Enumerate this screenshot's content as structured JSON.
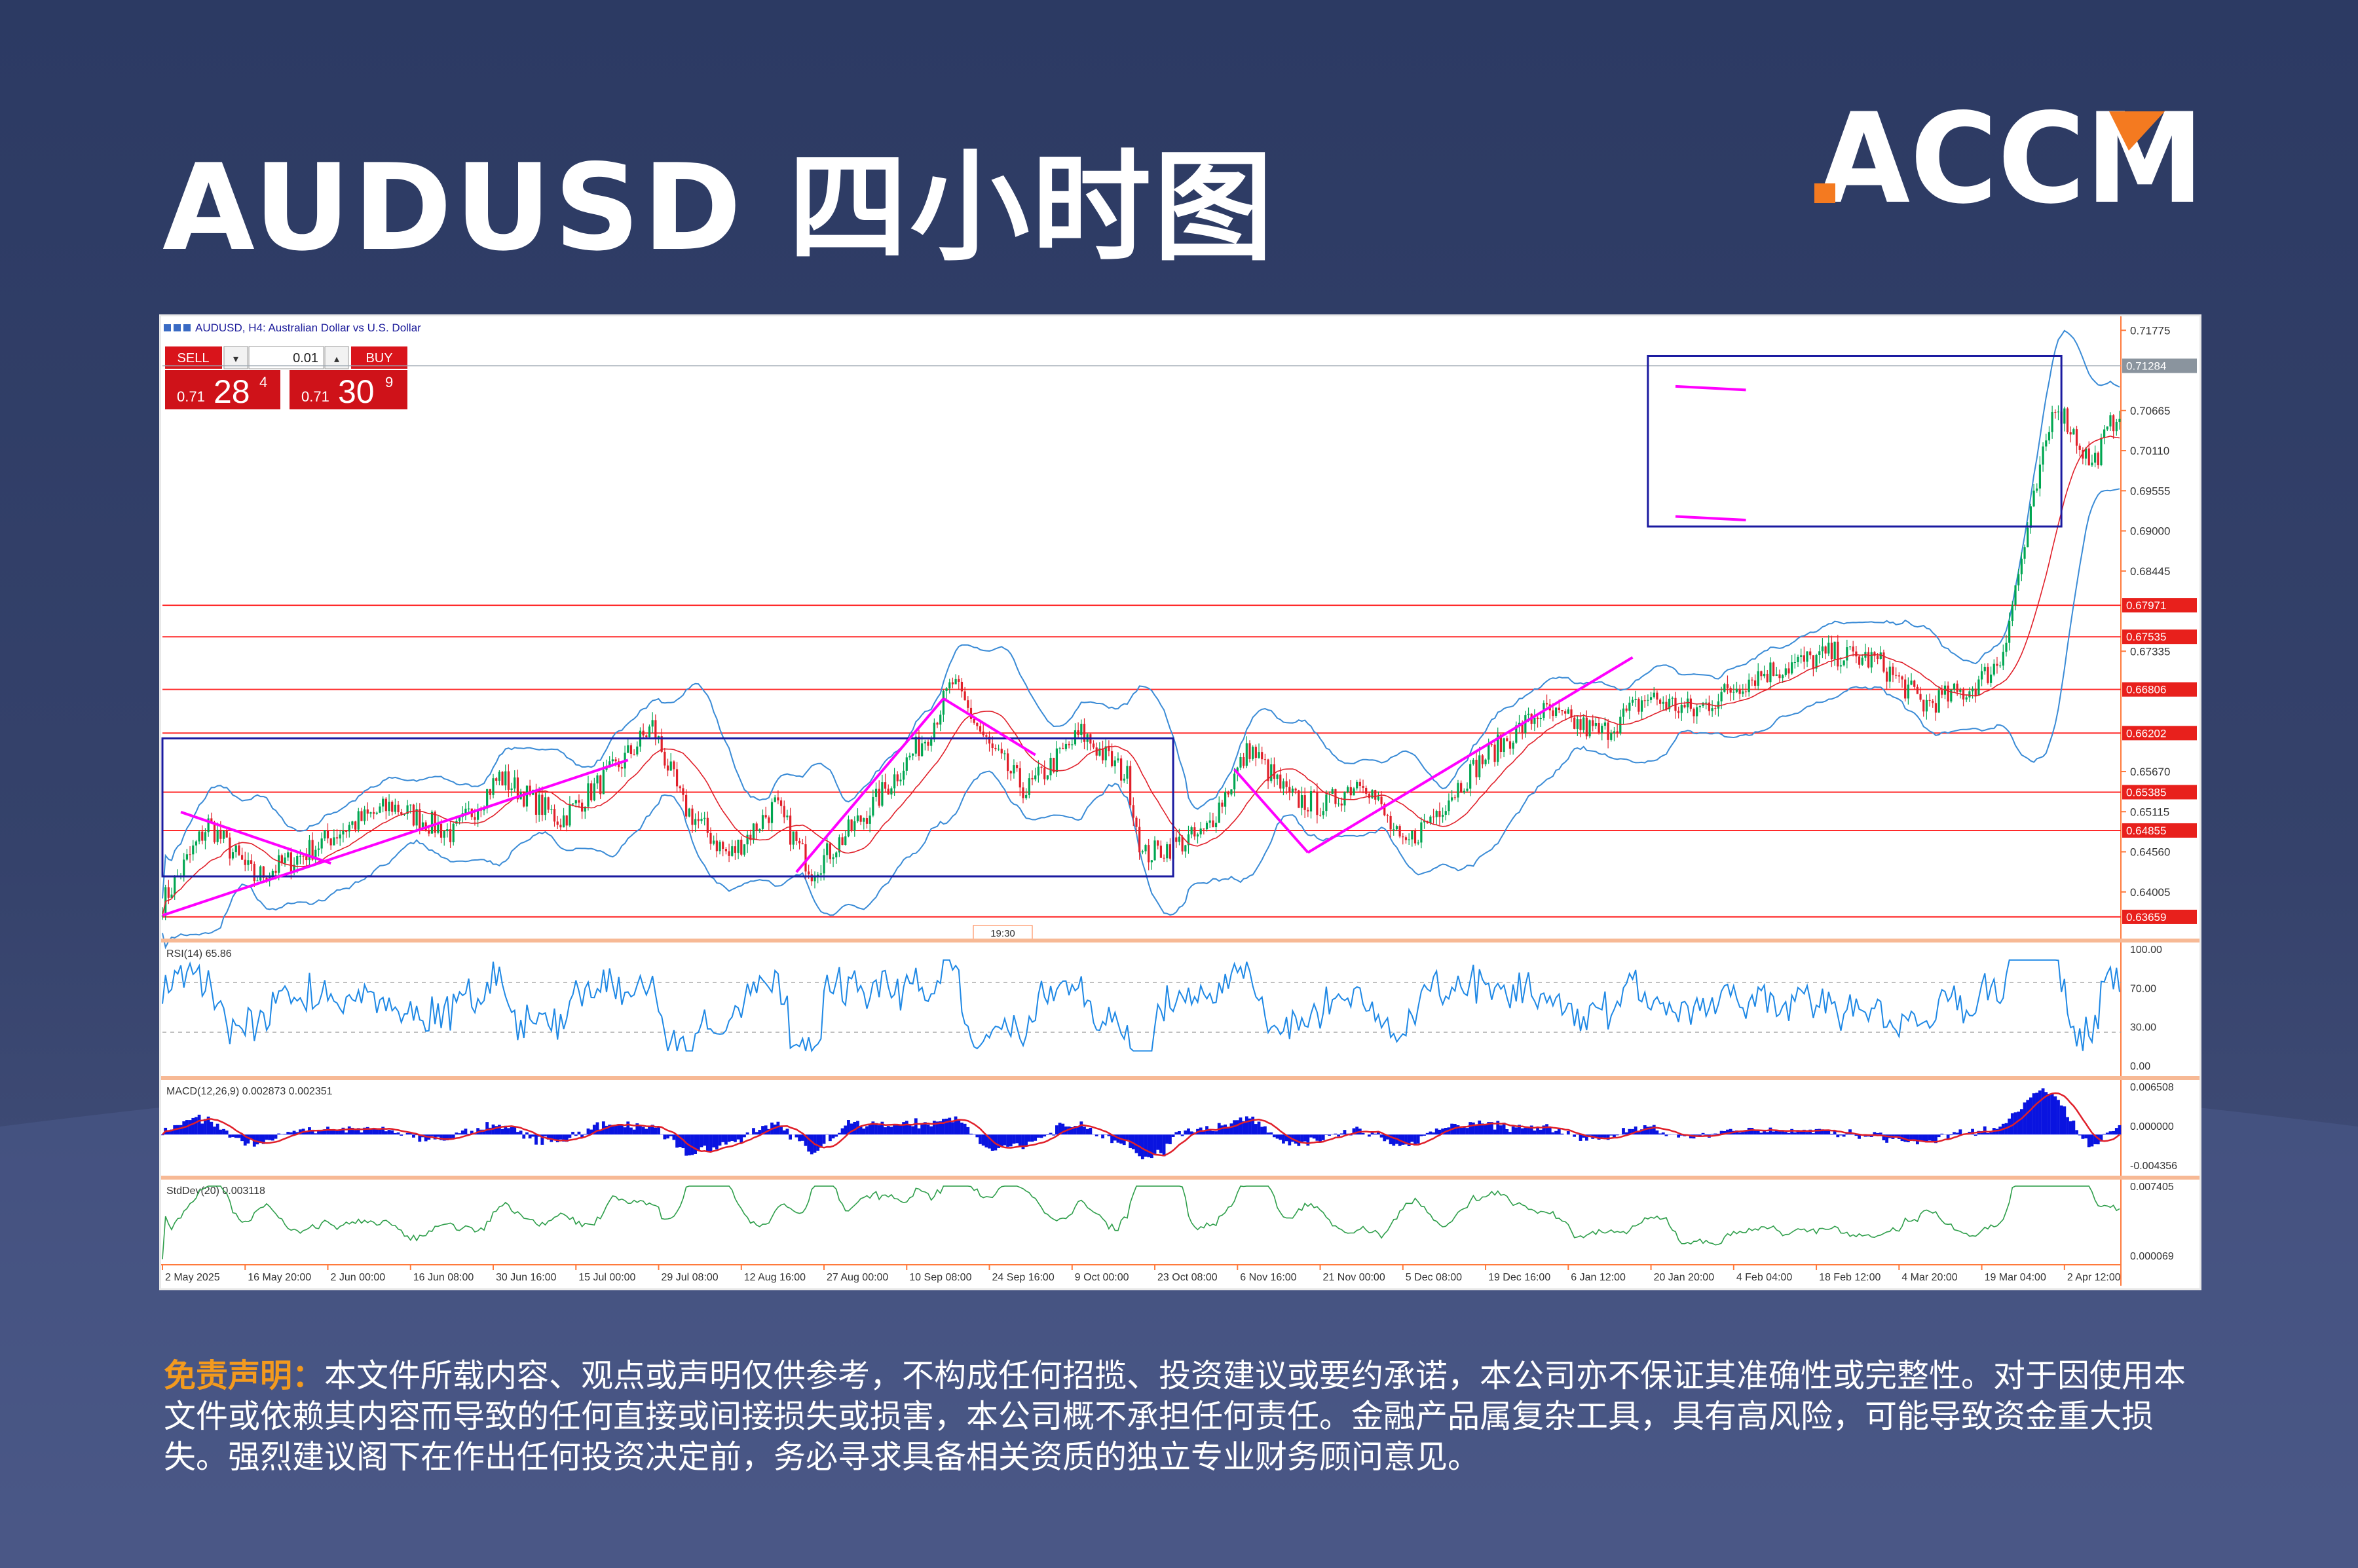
{
  "title": "AUDUSD 四小时图",
  "logo_text": "ACCM",
  "colors": {
    "brand_orange": "#f47a20",
    "magenta": "#ff00ff",
    "red_level": "#ff2a2a",
    "box_blue": "#1a1aa0",
    "up_candle": "#00a651",
    "down_candle": "#e0202a",
    "bands": "#3a8bd6"
  },
  "chart_header": {
    "symbol_line": "AUDUSD, H4:  Australian Dollar vs U.S. Dollar"
  },
  "trade_panel": {
    "sell_label": "SELL",
    "buy_label": "BUY",
    "lot": "0.01",
    "sell_prefix": "0.71",
    "sell_big": "28",
    "sell_sup": "4",
    "buy_prefix": "0.71",
    "buy_big": "30",
    "buy_sup": "9"
  },
  "chart_data": {
    "type": "line",
    "title": "AUDUSD, H4:  Australian Dollar vs U.S. Dollar",
    "ylim": [
      0.6345,
      0.7195
    ],
    "current_price_label": "0.71284",
    "y_ticks": [
      "0.71775",
      "0.70665",
      "0.70110",
      "0.69555",
      "0.69000",
      "0.68445",
      "0.67335",
      "0.65670",
      "0.65115",
      "0.64560",
      "0.64005"
    ],
    "x_labels": [
      "2 May 2025",
      "16 May 20:00",
      "2 Jun 00:00",
      "16 Jun 08:00",
      "30 Jun 16:00",
      "15 Jul 00:00",
      "29 Jul 08:00",
      "12 Aug 16:00",
      "27 Aug 00:00",
      "10 Sep 08:00",
      "24 Sep 16:00",
      "9 Oct 00:00",
      "23 Oct 08:00",
      "6 Nov 16:00",
      "21 Nov 00:00",
      "5 Dec 08:00",
      "19 Dec 16:00",
      "6 Jan 12:00",
      "20 Jan 20:00",
      "4 Feb 04:00",
      "18 Feb 12:00",
      "4 Mar 20:00",
      "19 Mar 04:00",
      "2 Apr 12:00"
    ],
    "x_index": [
      0,
      27,
      54,
      81,
      108,
      135,
      162,
      189,
      216,
      243,
      270,
      297,
      324,
      351,
      378,
      405,
      432,
      459,
      486,
      513,
      540,
      567,
      594,
      621
    ],
    "n_bars": 640,
    "price_anchors": [
      [
        0,
        0.6385
      ],
      [
        15,
        0.6495
      ],
      [
        30,
        0.642
      ],
      [
        45,
        0.645
      ],
      [
        60,
        0.649
      ],
      [
        75,
        0.652
      ],
      [
        95,
        0.648
      ],
      [
        110,
        0.656
      ],
      [
        130,
        0.65
      ],
      [
        150,
        0.658
      ],
      [
        160,
        0.663
      ],
      [
        170,
        0.652
      ],
      [
        185,
        0.645
      ],
      [
        200,
        0.652
      ],
      [
        212,
        0.643
      ],
      [
        230,
        0.651
      ],
      [
        250,
        0.662
      ],
      [
        258,
        0.669
      ],
      [
        270,
        0.66
      ],
      [
        282,
        0.654
      ],
      [
        300,
        0.662
      ],
      [
        315,
        0.656
      ],
      [
        320,
        0.645
      ],
      [
        340,
        0.648
      ],
      [
        355,
        0.66
      ],
      [
        368,
        0.653
      ],
      [
        380,
        0.652
      ],
      [
        392,
        0.656
      ],
      [
        405,
        0.646
      ],
      [
        430,
        0.658
      ],
      [
        450,
        0.665
      ],
      [
        470,
        0.662
      ],
      [
        485,
        0.667
      ],
      [
        500,
        0.665
      ],
      [
        520,
        0.67
      ],
      [
        545,
        0.673
      ],
      [
        560,
        0.672
      ],
      [
        575,
        0.666
      ],
      [
        590,
        0.668
      ],
      [
        600,
        0.672
      ],
      [
        605,
        0.682
      ],
      [
        612,
        0.696
      ],
      [
        618,
        0.708
      ],
      [
        630,
        0.699
      ],
      [
        640,
        0.708
      ]
    ],
    "red_levels": [
      {
        "value": 0.67971,
        "label": "0.67971"
      },
      {
        "value": 0.67535,
        "label": "0.67535"
      },
      {
        "value": 0.66806,
        "label": "0.66806"
      },
      {
        "value": 0.66202,
        "label": "0.66202"
      },
      {
        "value": 0.65385,
        "label": "0.65385"
      },
      {
        "value": 0.64855,
        "label": "0.64855"
      },
      {
        "value": 0.63659,
        "label": "0.63659"
      }
    ],
    "boxes": [
      {
        "x0": 0,
        "x1": 330,
        "y0": 0.6422,
        "y1": 0.6613
      },
      {
        "x0": 485,
        "x1": 620,
        "y0": 0.6906,
        "y1": 0.7142
      }
    ],
    "trendlines": [
      [
        0,
        0.6368,
        152,
        0.6583
      ],
      [
        6,
        0.6511,
        55,
        0.644
      ],
      [
        207,
        0.6428,
        255,
        0.6668
      ],
      [
        255,
        0.6668,
        285,
        0.659
      ],
      [
        374,
        0.6455,
        350,
        0.657
      ],
      [
        374,
        0.6455,
        480,
        0.6725
      ],
      [
        494,
        0.71,
        517,
        0.7095
      ],
      [
        494,
        0.692,
        517,
        0.6915
      ]
    ],
    "last_tag": "19:30",
    "indicators": [
      {
        "name": "RSI",
        "label": "RSI(14) 65.86",
        "ticks": [
          "100.00",
          "70.00",
          "30.00",
          "0.00"
        ]
      },
      {
        "name": "MACD",
        "label": "MACD(12,26,9) 0.002873 0.002351",
        "ticks": [
          "0.006508",
          "0.000000",
          "-0.004356"
        ]
      },
      {
        "name": "StdDev",
        "label": "StdDev(20) 0.003118",
        "ticks": [
          "0.007405",
          "0.000069"
        ]
      }
    ]
  },
  "disclaimer": {
    "label": "免责声明：",
    "text": "本文件所载内容、观点或声明仅供参考，不构成任何招揽、投资建议或要约承诺，本公司亦不保证其准确性或完整性。对于因使用本文件或依赖其内容而导致的任何直接或间接损失或损害，本公司概不承担任何责任。金融产品属复杂工具，具有高风险，可能导致资金重大损失。强烈建议阁下在作出任何投资决定前，务必寻求具备相关资质的独立专业财务顾问意见。"
  }
}
